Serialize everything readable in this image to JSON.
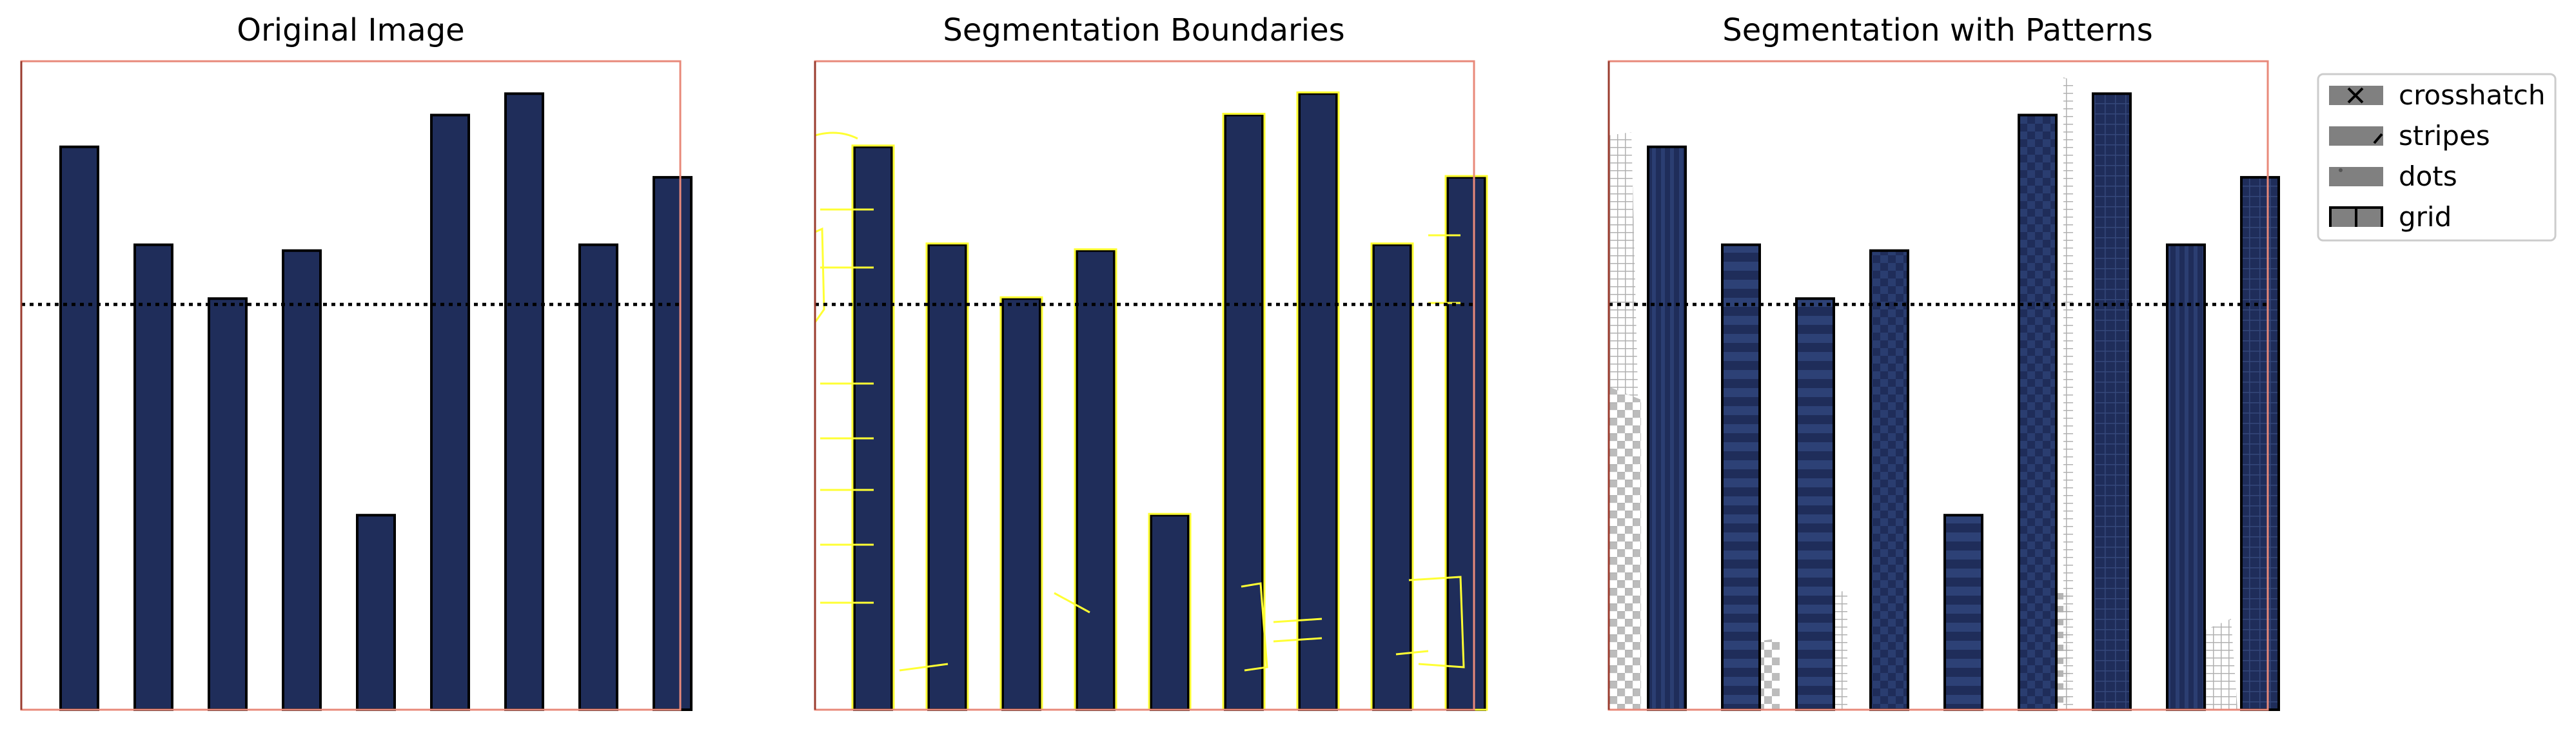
{
  "chart_data": [
    {
      "type": "bar",
      "title": "Original Image",
      "values": [
        0.868,
        0.717,
        0.634,
        0.708,
        0.3,
        0.917,
        0.95,
        0.717,
        0.821
      ],
      "threshold": 0.625,
      "bar_color": "#1f2d5a",
      "frame_color": "#e8897a",
      "ylim": [
        0,
        1
      ]
    },
    {
      "type": "bar",
      "title": "Segmentation Boundaries",
      "values": [
        0.868,
        0.717,
        0.634,
        0.708,
        0.3,
        0.917,
        0.95,
        0.717,
        0.821
      ],
      "threshold": 0.625,
      "boundary_color": "#ffff33",
      "ylim": [
        0,
        1
      ]
    },
    {
      "type": "bar",
      "title": "Segmentation with Patterns",
      "values": [
        0.868,
        0.717,
        0.634,
        0.708,
        0.3,
        0.917,
        0.95,
        0.717,
        0.821
      ],
      "threshold": 0.625,
      "legend_position": "outside-right",
      "legend": [
        {
          "label": "crosshatch",
          "pattern": "crosshatch"
        },
        {
          "label": "stripes",
          "pattern": "stripes"
        },
        {
          "label": "dots",
          "pattern": "dots"
        },
        {
          "label": "grid",
          "pattern": "grid"
        }
      ],
      "ylim": [
        0,
        1
      ]
    }
  ]
}
